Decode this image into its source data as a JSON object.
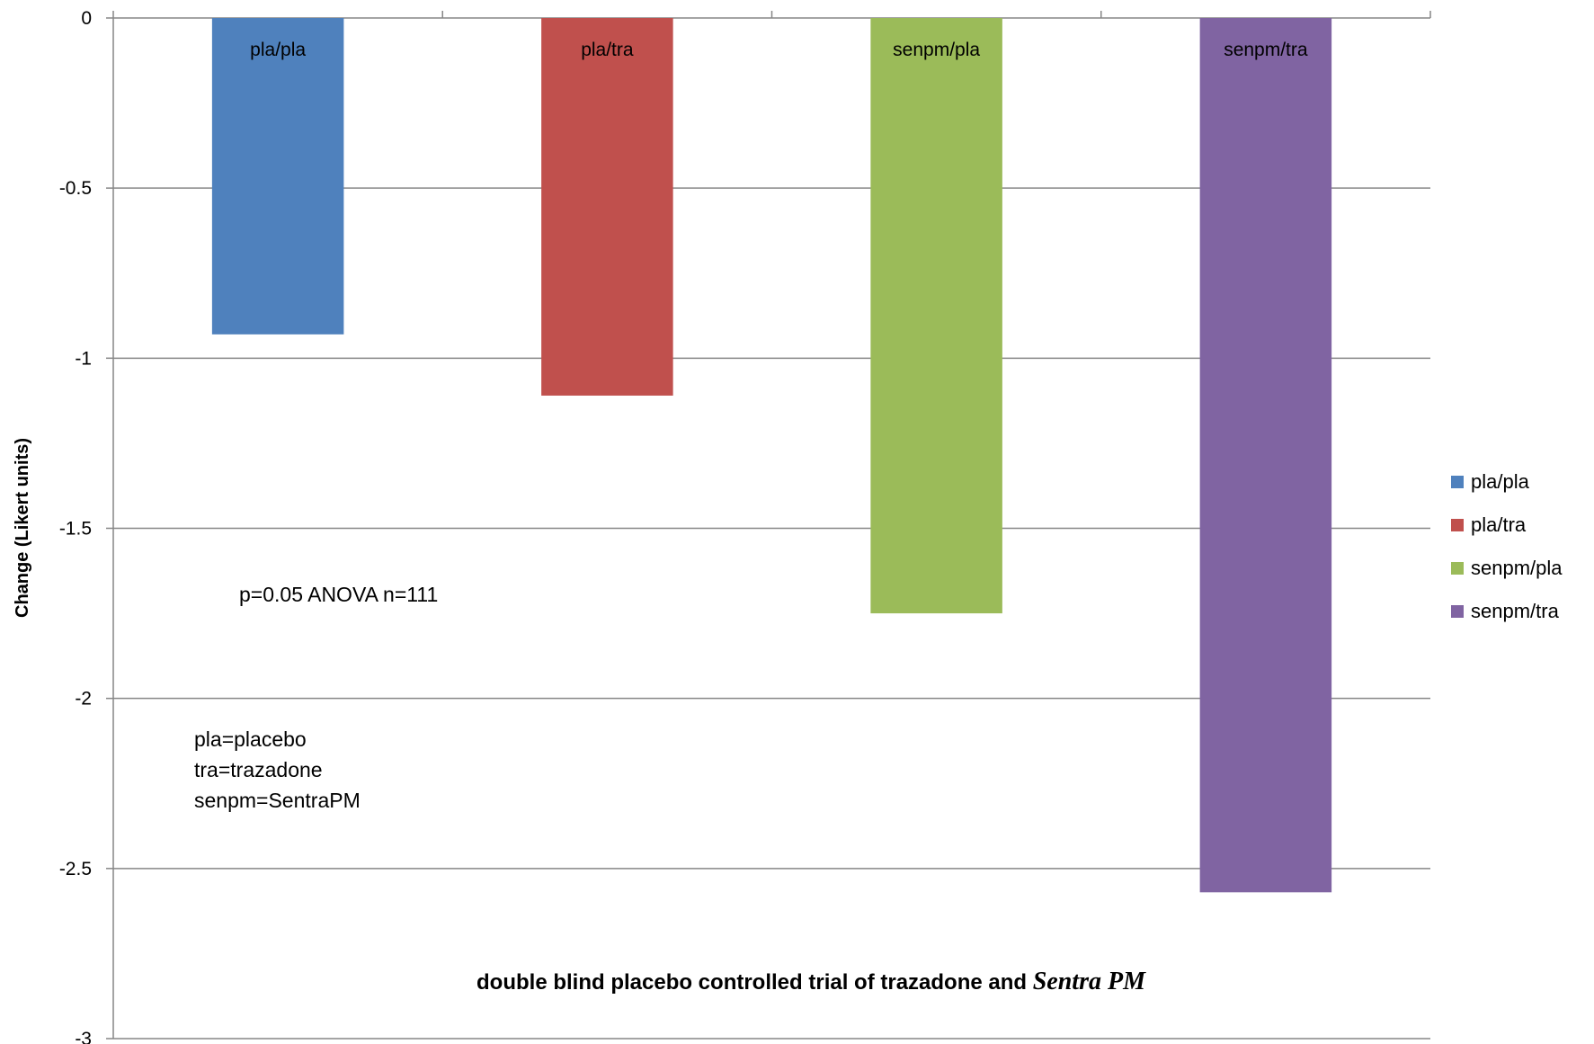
{
  "chart_data": {
    "type": "bar",
    "categories": [
      "pla/pla",
      "pla/tra",
      "senpm/pla",
      "senpm/tra"
    ],
    "values": [
      -0.93,
      -1.11,
      -1.75,
      -2.57
    ],
    "colors": [
      "#4F81BD",
      "#C0504D",
      "#9BBB59",
      "#8064A2"
    ],
    "ylabel": "Change (Likert units)",
    "xlabel": "",
    "ylim": [
      -3,
      0
    ],
    "yticks": [
      0,
      -0.5,
      -1,
      -1.5,
      -2,
      -2.5,
      -3
    ],
    "ytick_labels": [
      "0",
      "-0.5",
      "-1",
      "-1.5",
      "-2",
      "-2.5",
      "-3"
    ],
    "grid": true,
    "legend_position": "right",
    "legend": [
      "pla/pla",
      "pla/tra",
      "senpm/pla",
      "senpm/tra"
    ],
    "annotations": {
      "stats": "p=0.05 ANOVA n=111",
      "key_lines": [
        "pla=placebo",
        "tra=trazadone",
        "senpm=SentraPM"
      ]
    },
    "title_plain": "double blind placebo controlled trial of trazadone and ",
    "title_italic": "Sentra PM"
  }
}
